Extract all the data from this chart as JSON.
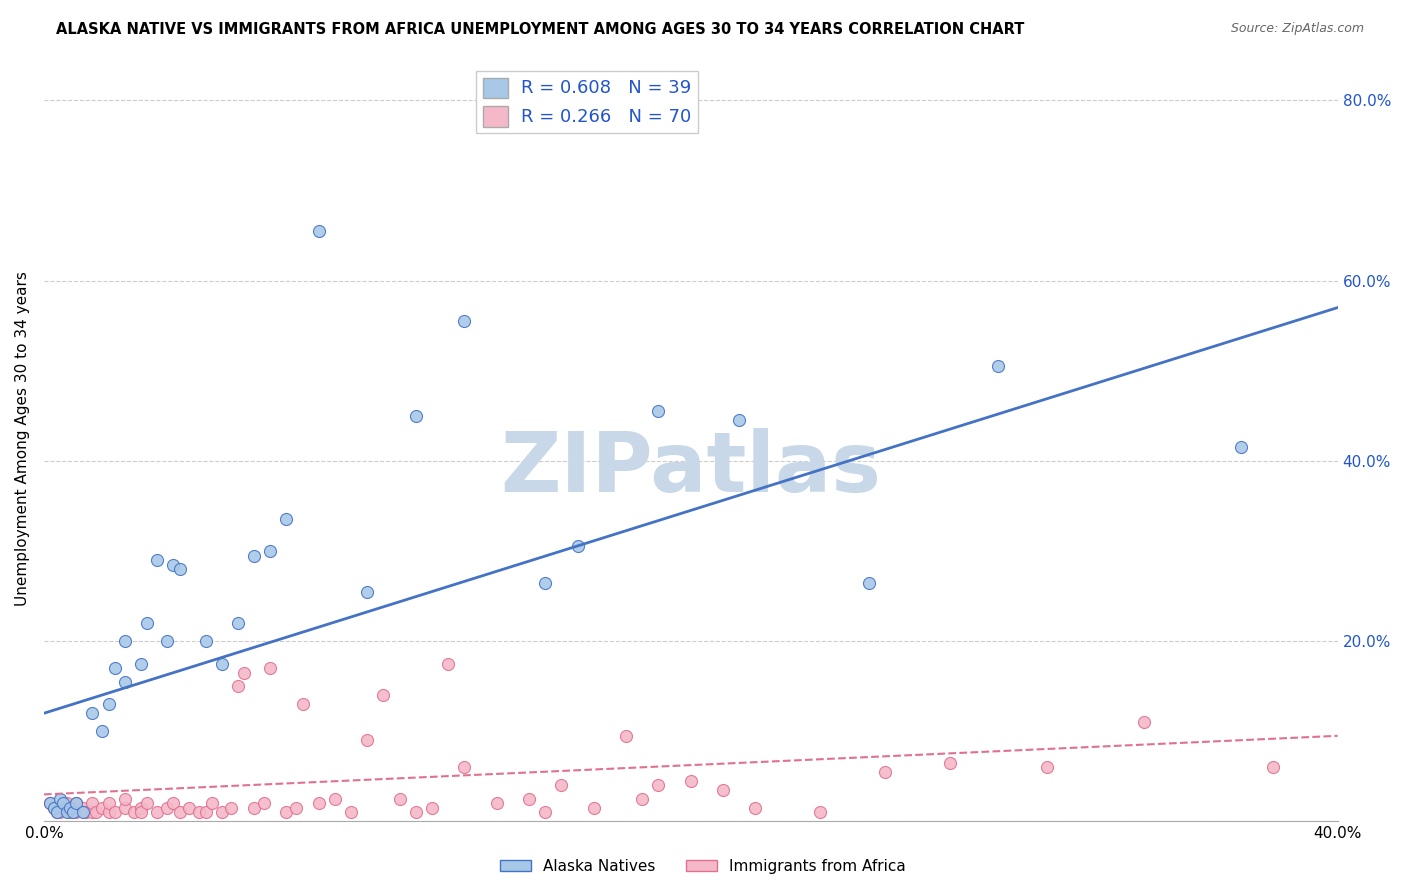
{
  "title": "ALASKA NATIVE VS IMMIGRANTS FROM AFRICA UNEMPLOYMENT AMONG AGES 30 TO 34 YEARS CORRELATION CHART",
  "source": "Source: ZipAtlas.com",
  "ylabel": "Unemployment Among Ages 30 to 34 years",
  "xlim": [
    0.0,
    0.4
  ],
  "ylim": [
    0.0,
    0.85
  ],
  "x_ticks": [
    0.0,
    0.1,
    0.2,
    0.3,
    0.4
  ],
  "x_tick_labels": [
    "0.0%",
    "",
    "",
    "",
    "40.0%"
  ],
  "y_ticks_right": [
    0.0,
    0.2,
    0.4,
    0.6,
    0.8
  ],
  "y_tick_labels_right": [
    "",
    "20.0%",
    "40.0%",
    "60.0%",
    "80.0%"
  ],
  "legend1_label": "Alaska Natives",
  "legend2_label": "Immigrants from Africa",
  "R1": 0.608,
  "N1": 39,
  "R2": 0.266,
  "N2": 70,
  "color_blue": "#a8c8e8",
  "color_pink": "#f4b8c8",
  "line_blue": "#4472c4",
  "line_pink": "#e07090",
  "alaska_x": [
    0.002,
    0.003,
    0.004,
    0.005,
    0.006,
    0.007,
    0.008,
    0.009,
    0.01,
    0.012,
    0.015,
    0.018,
    0.02,
    0.022,
    0.025,
    0.025,
    0.03,
    0.032,
    0.035,
    0.038,
    0.04,
    0.042,
    0.05,
    0.055,
    0.06,
    0.065,
    0.07,
    0.075,
    0.085,
    0.1,
    0.115,
    0.13,
    0.155,
    0.165,
    0.19,
    0.215,
    0.255,
    0.295,
    0.37
  ],
  "alaska_y": [
    0.02,
    0.015,
    0.01,
    0.025,
    0.02,
    0.01,
    0.015,
    0.01,
    0.02,
    0.01,
    0.12,
    0.1,
    0.13,
    0.17,
    0.2,
    0.155,
    0.175,
    0.22,
    0.29,
    0.2,
    0.285,
    0.28,
    0.2,
    0.175,
    0.22,
    0.295,
    0.3,
    0.335,
    0.655,
    0.255,
    0.45,
    0.555,
    0.265,
    0.305,
    0.455,
    0.445,
    0.265,
    0.505,
    0.415
  ],
  "africa_x": [
    0.002,
    0.003,
    0.004,
    0.005,
    0.006,
    0.007,
    0.008,
    0.009,
    0.01,
    0.01,
    0.012,
    0.013,
    0.015,
    0.015,
    0.016,
    0.018,
    0.02,
    0.02,
    0.022,
    0.025,
    0.025,
    0.028,
    0.03,
    0.03,
    0.032,
    0.035,
    0.038,
    0.04,
    0.042,
    0.045,
    0.048,
    0.05,
    0.052,
    0.055,
    0.058,
    0.06,
    0.062,
    0.065,
    0.068,
    0.07,
    0.075,
    0.078,
    0.08,
    0.085,
    0.09,
    0.095,
    0.1,
    0.105,
    0.11,
    0.115,
    0.12,
    0.125,
    0.13,
    0.14,
    0.15,
    0.155,
    0.16,
    0.17,
    0.18,
    0.185,
    0.19,
    0.2,
    0.21,
    0.22,
    0.24,
    0.26,
    0.28,
    0.31,
    0.34,
    0.38
  ],
  "africa_y": [
    0.02,
    0.015,
    0.01,
    0.01,
    0.015,
    0.02,
    0.01,
    0.015,
    0.02,
    0.01,
    0.015,
    0.01,
    0.01,
    0.02,
    0.01,
    0.015,
    0.01,
    0.02,
    0.01,
    0.015,
    0.025,
    0.01,
    0.015,
    0.01,
    0.02,
    0.01,
    0.015,
    0.02,
    0.01,
    0.015,
    0.01,
    0.01,
    0.02,
    0.01,
    0.015,
    0.15,
    0.165,
    0.015,
    0.02,
    0.17,
    0.01,
    0.015,
    0.13,
    0.02,
    0.025,
    0.01,
    0.09,
    0.14,
    0.025,
    0.01,
    0.015,
    0.175,
    0.06,
    0.02,
    0.025,
    0.01,
    0.04,
    0.015,
    0.095,
    0.025,
    0.04,
    0.045,
    0.035,
    0.015,
    0.01,
    0.055,
    0.065,
    0.06,
    0.11,
    0.06
  ],
  "blue_line_x0": 0.0,
  "blue_line_y0": 0.12,
  "blue_line_x1": 0.4,
  "blue_line_y1": 0.57,
  "pink_line_x0": 0.0,
  "pink_line_y0": 0.03,
  "pink_line_x1": 0.4,
  "pink_line_y1": 0.095,
  "background_color": "#ffffff",
  "watermark": "ZIPatlas",
  "watermark_color": "#c8d8e8"
}
